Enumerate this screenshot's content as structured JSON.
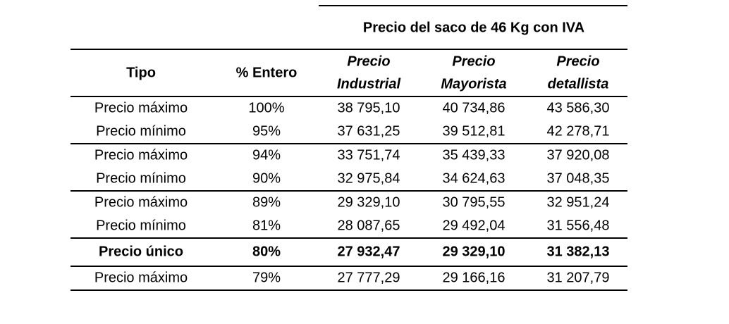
{
  "table": {
    "group_header": "Precio del saco de 46 Kg con IVA",
    "columns": [
      [
        "Tipo"
      ],
      [
        "% Entero"
      ],
      [
        "Precio",
        "Industrial"
      ],
      [
        "Precio",
        "Mayorista"
      ],
      [
        "Precio",
        "detallista"
      ]
    ],
    "groups": [
      {
        "rows": [
          [
            "Precio máximo",
            "100%",
            "38 795,10",
            "40 734,86",
            "43 586,30"
          ],
          [
            "Precio mínimo",
            "95%",
            "37 631,25",
            "39 512,81",
            "42 278,71"
          ]
        ]
      },
      {
        "rows": [
          [
            "Precio máximo",
            "94%",
            "33 751,74",
            "35 439,33",
            "37 920,08"
          ],
          [
            "Precio mínimo",
            "90%",
            "32 975,84",
            "34 624,63",
            "37 048,35"
          ]
        ]
      },
      {
        "rows": [
          [
            "Precio máximo",
            "89%",
            "29 329,10",
            "30 795,55",
            "32 951,24"
          ],
          [
            "Precio mínimo",
            "81%",
            "28 087,65",
            "29 492,04",
            "31 556,48"
          ]
        ]
      },
      {
        "bold": true,
        "rows": [
          [
            "Precio único",
            "80%",
            "27 932,47",
            "29 329,10",
            "31 382,13"
          ]
        ]
      },
      {
        "rows": [
          [
            "Precio máximo",
            "79%",
            "27 777,29",
            "29 166,16",
            "31 207,79"
          ]
        ]
      }
    ]
  }
}
